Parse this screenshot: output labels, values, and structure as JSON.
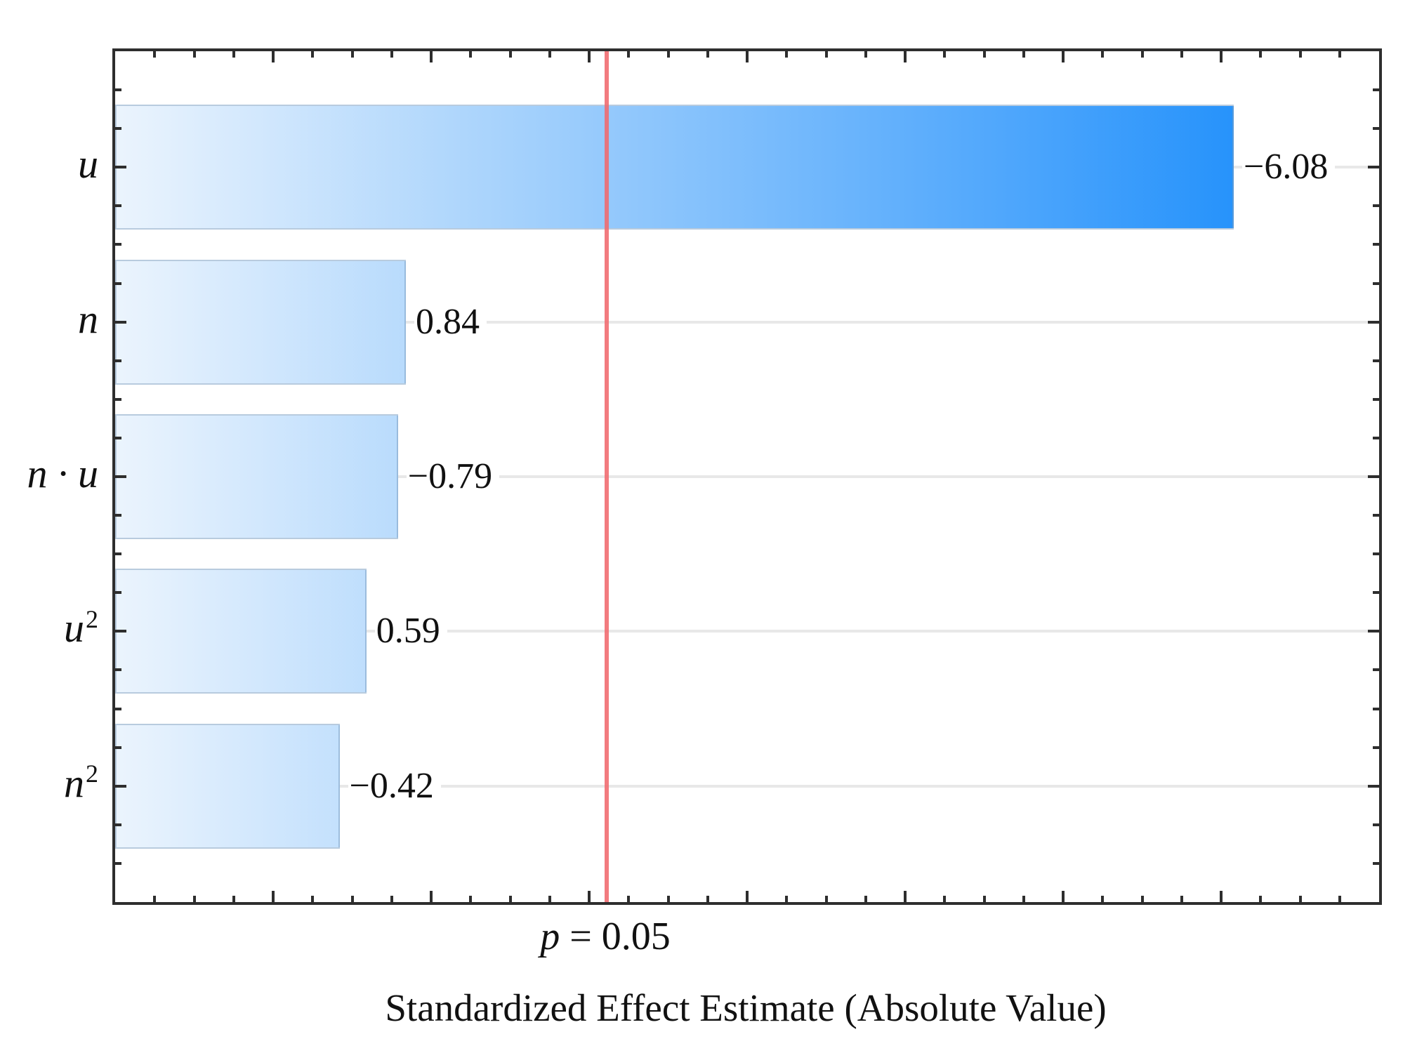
{
  "chart_data": {
    "type": "bar",
    "orientation": "horizontal",
    "title": "",
    "xlabel": "Standardized Effect Estimate (Absolute Value)",
    "ylabel": "",
    "categories": [
      "u",
      "n",
      "n · u",
      "u²",
      "n²"
    ],
    "values": [
      -6.08,
      0.84,
      -0.79,
      0.59,
      -0.42
    ],
    "value_labels": [
      "−6.08",
      "0.84",
      "−0.79",
      "0.59",
      "−0.42"
    ],
    "xlim": [
      -1,
      7
    ],
    "x_major_tick_step": 1,
    "x_minor_tick_step": 0.25,
    "grid": "horizontal gridline at each category center, from bar end to right axis",
    "legend": "none",
    "reference_line": {
      "var": "p",
      "rest": "= 0.05",
      "x": 2.11,
      "color": "#f0696d"
    },
    "colors": {
      "bar_gradient_start": "#ebf4fd",
      "bar_gradient_end": "#0d86fb",
      "bar_border": "rgba(125,160,195,0.55)",
      "frame": "#2e2e2e",
      "gridline": "#e8e8e8",
      "text": "#111111",
      "background": "#ffffff"
    }
  }
}
